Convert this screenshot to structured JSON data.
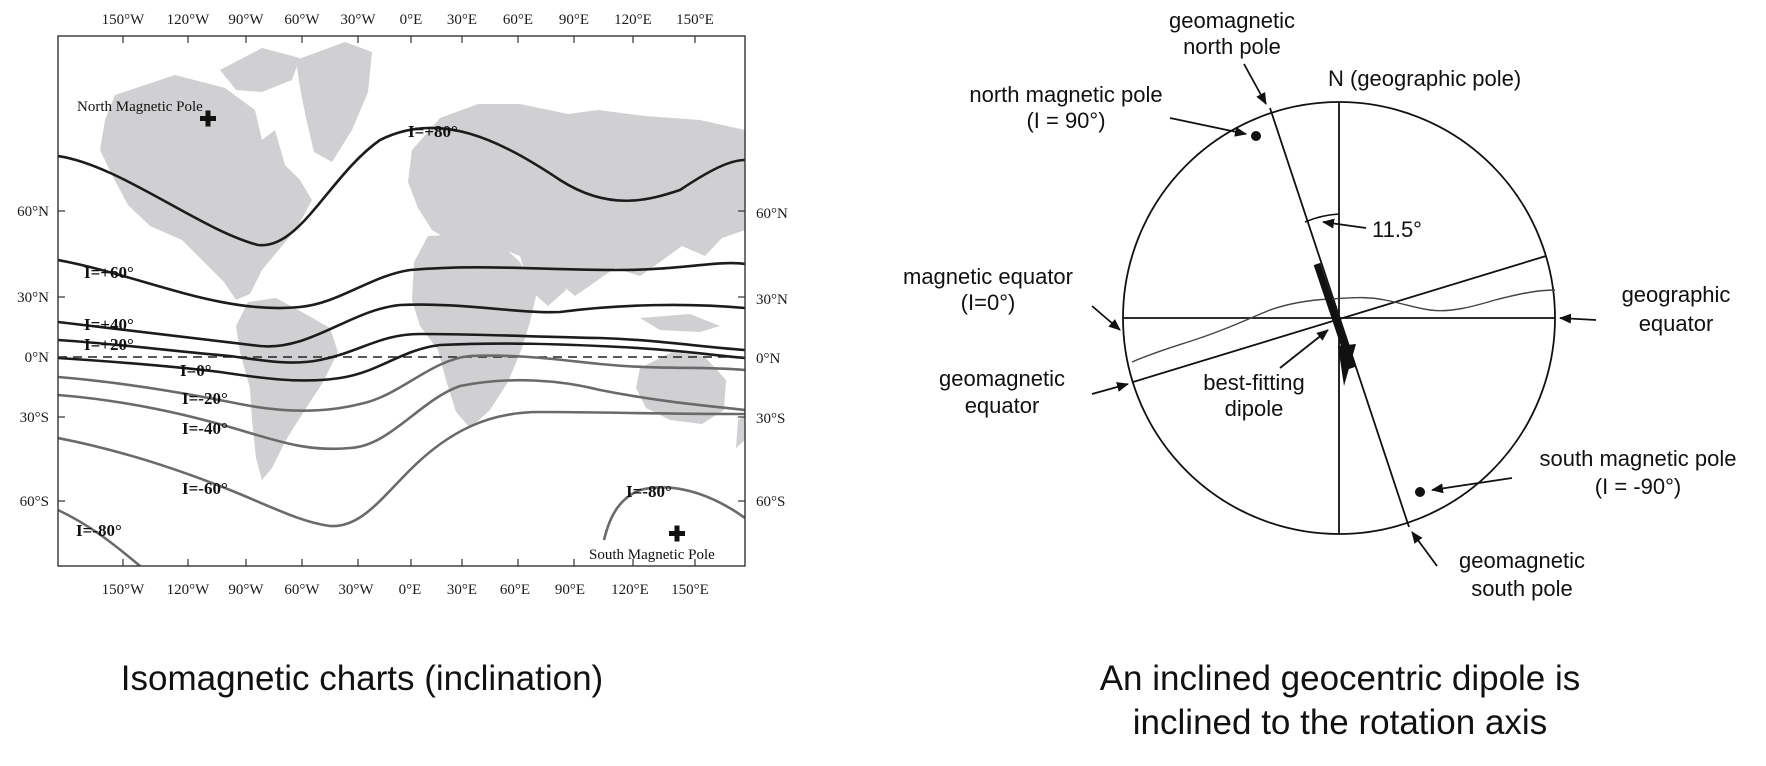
{
  "map": {
    "top_ticks": [
      "150°W",
      "120°W",
      "90°W",
      "60°W",
      "30°W",
      "0°E",
      "30°E",
      "60°E",
      "90°E",
      "120°E",
      "150°E"
    ],
    "bottom_ticks": [
      "150°W",
      "120°W",
      "90°W",
      "60°W",
      "30°W",
      "0°E",
      "30°E",
      "60°E",
      "90°E",
      "120°E",
      "150°E"
    ],
    "left_ticks": [
      "60°N",
      "30°N",
      "0°N",
      "30°S",
      "60°S"
    ],
    "right_ticks": [
      "60°N",
      "30°N",
      "0°N",
      "30°S",
      "60°S"
    ],
    "isoclines": [
      {
        "label": "I=+80°"
      },
      {
        "label": "I=+60°"
      },
      {
        "label": "I=+40°"
      },
      {
        "label": "I=+20°"
      },
      {
        "label": "I=0°"
      },
      {
        "label": "I=-20°"
      },
      {
        "label": "I=-40°"
      },
      {
        "label": "I=-60°"
      },
      {
        "label": "I=-80°"
      },
      {
        "label": "I=-80°"
      }
    ],
    "north_pole_label": "North Magnetic Pole",
    "south_pole_label": "South Magnetic Pole",
    "caption": "Isomagnetic charts (inclination)"
  },
  "dipole": {
    "geomagnetic_north_pole": [
      "geomagnetic",
      "north pole"
    ],
    "north_geographic": "N (geographic pole)",
    "north_magnetic_pole": [
      "north magnetic pole",
      "(I = 90°)"
    ],
    "angle": "11.5°",
    "magnetic_equator": [
      "magnetic equator",
      "(I=0°)"
    ],
    "geographic_equator": [
      "geographic",
      "equator"
    ],
    "geomagnetic_equator": [
      "geomagnetic",
      "equator"
    ],
    "best_fitting_dipole": [
      "best-fitting",
      "dipole"
    ],
    "south_magnetic_pole": [
      "south magnetic pole",
      "(I = -90°)"
    ],
    "geomagnetic_south_pole": [
      "geomagnetic",
      "south pole"
    ],
    "caption": [
      "An inclined geocentric dipole is",
      "inclined to the rotation axis"
    ]
  }
}
